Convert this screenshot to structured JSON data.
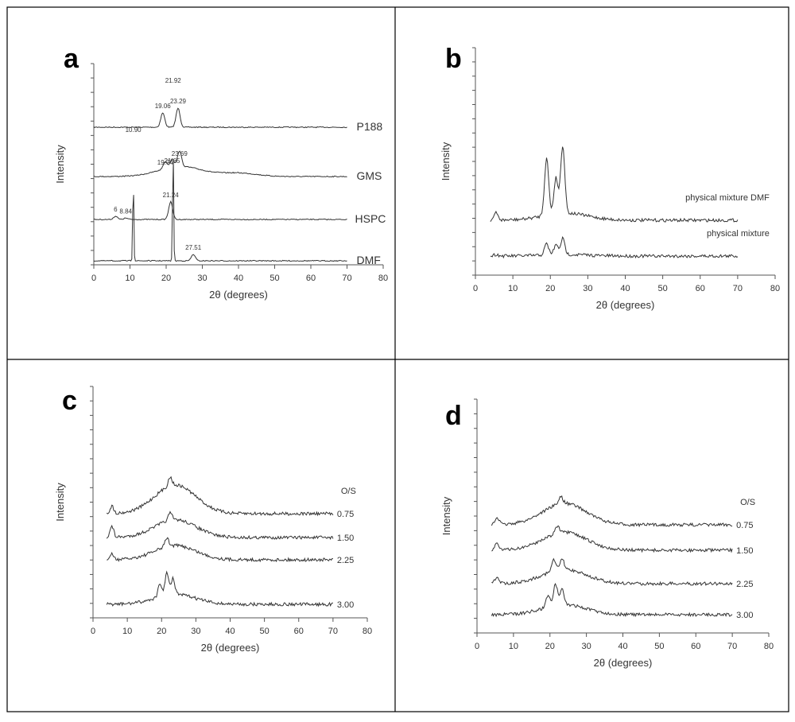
{
  "chart_data": [
    {
      "panel": "a",
      "type": "line",
      "xlabel": "2θ (degrees)",
      "ylabel": "Intensity",
      "xlim": [
        0,
        80
      ],
      "xticks": [
        0,
        10,
        20,
        30,
        40,
        50,
        60,
        70,
        80
      ],
      "series": [
        {
          "name": "P188",
          "peaks": [
            {
              "x": 19.06,
              "h": 0.45,
              "label": "19.06"
            },
            {
              "x": 23.29,
              "h": 0.6,
              "label": "23.29"
            },
            {
              "x": 21.92,
              "h": 0,
              "label": "21.92"
            }
          ]
        },
        {
          "name": "GMS",
          "peaks": [
            {
              "x": 19.74,
              "h": 0.25,
              "label": "19.74"
            },
            {
              "x": 21.65,
              "h": 0.3,
              "label": "21.65"
            },
            {
              "x": 23.69,
              "h": 0.55,
              "label": "23.69"
            },
            {
              "x": 10.9,
              "h": 0,
              "label": "10.90"
            }
          ]
        },
        {
          "name": "HSPC",
          "peaks": [
            {
              "x": 6,
              "h": 0.12,
              "label": "6"
            },
            {
              "x": 8.84,
              "h": 0.05,
              "label": "8.84"
            },
            {
              "x": 21.24,
              "h": 0.65,
              "label": "21.24"
            }
          ]
        },
        {
          "name": "DMF",
          "peaks": [
            {
              "x": 10.9,
              "h": 2.6,
              "label": ""
            },
            {
              "x": 21.92,
              "h": 3.6,
              "label": ""
            },
            {
              "x": 27.51,
              "h": 0.2,
              "label": "27.51"
            }
          ]
        }
      ]
    },
    {
      "panel": "b",
      "type": "line",
      "xlabel": "2θ (degrees)",
      "ylabel": "Intensity",
      "xlim": [
        0,
        80
      ],
      "xticks": [
        0,
        10,
        20,
        30,
        40,
        50,
        60,
        70,
        80
      ],
      "series": [
        {
          "name": "physical mixture DMF",
          "peaks": [
            {
              "x": 5.5,
              "h": 0.1
            },
            {
              "x": 19.0,
              "h": 0.8
            },
            {
              "x": 21.5,
              "h": 0.5
            },
            {
              "x": 23.3,
              "h": 0.95
            }
          ]
        },
        {
          "name": "physical mixture",
          "peaks": [
            {
              "x": 5.5,
              "h": 0.05
            },
            {
              "x": 19.0,
              "h": 0.35
            },
            {
              "x": 21.5,
              "h": 0.3
            },
            {
              "x": 23.3,
              "h": 0.5
            }
          ]
        }
      ]
    },
    {
      "panel": "c",
      "type": "line",
      "xlabel": "2θ (degrees)",
      "ylabel": "Intensity",
      "xlim": [
        0,
        80
      ],
      "xticks": [
        0,
        10,
        20,
        30,
        40,
        50,
        60,
        70,
        80
      ],
      "legend_title": "O/S",
      "series": [
        {
          "name": "0.75",
          "peaks": [
            {
              "x": 5.5,
              "h": 0.2
            },
            {
              "x": 22.5,
              "h": 0.25
            }
          ]
        },
        {
          "name": "1.50",
          "peaks": [
            {
              "x": 5.5,
              "h": 0.3
            },
            {
              "x": 22.5,
              "h": 0.2
            }
          ]
        },
        {
          "name": "2.25",
          "peaks": [
            {
              "x": 5.5,
              "h": 0.15
            },
            {
              "x": 21.5,
              "h": 0.25
            }
          ]
        },
        {
          "name": "3.00",
          "peaks": [
            {
              "x": 19.5,
              "h": 0.3
            },
            {
              "x": 21.5,
              "h": 0.55
            },
            {
              "x": 23.3,
              "h": 0.4
            }
          ]
        }
      ]
    },
    {
      "panel": "d",
      "type": "line",
      "xlabel": "2θ (degrees)",
      "ylabel": "Intensity",
      "xlim": [
        0,
        80
      ],
      "xticks": [
        0,
        10,
        20,
        30,
        40,
        50,
        60,
        70,
        80
      ],
      "legend_title": "O/S",
      "series": [
        {
          "name": "0.75",
          "peaks": [
            {
              "x": 5.5,
              "h": 0.2
            },
            {
              "x": 23.0,
              "h": 0.2
            }
          ]
        },
        {
          "name": "1.50",
          "peaks": [
            {
              "x": 5.5,
              "h": 0.2
            },
            {
              "x": 22.0,
              "h": 0.2
            }
          ]
        },
        {
          "name": "2.25",
          "peaks": [
            {
              "x": 5.5,
              "h": 0.2
            },
            {
              "x": 21.0,
              "h": 0.3
            },
            {
              "x": 23.3,
              "h": 0.3
            }
          ]
        },
        {
          "name": "3.00",
          "peaks": [
            {
              "x": 19.5,
              "h": 0.3
            },
            {
              "x": 21.5,
              "h": 0.55
            },
            {
              "x": 23.3,
              "h": 0.4
            }
          ]
        }
      ]
    }
  ]
}
